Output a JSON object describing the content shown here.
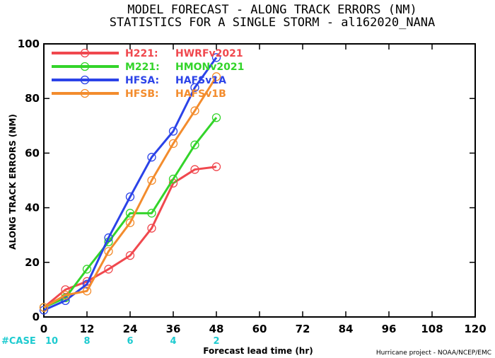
{
  "colors": {
    "H221": "#f0484e",
    "M221": "#33d42a",
    "HFSA": "#2b43e8",
    "HFSB": "#f38c2d",
    "case": "#1ecbd0"
  },
  "chart_data": {
    "type": "line",
    "title": "MODEL FORECAST - ALONG TRACK ERRORS (NM)",
    "subtitle": "STATISTICS FOR A SINGLE STORM - al162020_NANA",
    "xlabel": "Forecast lead time (hr)",
    "ylabel": "ALONG TRACK ERRORS (NM)",
    "xlim": [
      0,
      120
    ],
    "ylim": [
      0,
      100
    ],
    "x_ticks": [
      "0",
      "12",
      "24",
      "36",
      "48",
      "60",
      "72",
      "84",
      "96",
      "108",
      "120"
    ],
    "y_ticks": [
      "0",
      "20",
      "40",
      "60",
      "80",
      "100"
    ],
    "legend_position": "top-left",
    "series": [
      {
        "name": "H221:",
        "label": "HWRFv2021",
        "color_key": "H221",
        "x": [
          0,
          6,
          12,
          18,
          24,
          30,
          36,
          42,
          48
        ],
        "y": [
          3.5,
          10,
          13,
          17.5,
          22.5,
          32.5,
          49,
          54,
          55
        ]
      },
      {
        "name": "M221:",
        "label": "HMONv2021",
        "color_key": "M221",
        "x": [
          0,
          6,
          12,
          18,
          24,
          30,
          36,
          42,
          48
        ],
        "y": [
          3.5,
          7,
          17.5,
          27.5,
          38,
          38,
          50.5,
          63,
          73
        ]
      },
      {
        "name": "HFSA:",
        "label": "HAFSv1A",
        "color_key": "HFSA",
        "x": [
          0,
          6,
          12,
          18,
          24,
          30,
          36,
          42,
          48
        ],
        "y": [
          2.5,
          6,
          12,
          29,
          44,
          58.5,
          68,
          84,
          95
        ]
      },
      {
        "name": "HFSB:",
        "label": "HAFSv1B",
        "color_key": "HFSB",
        "x": [
          0,
          6,
          12,
          18,
          24,
          30,
          36,
          42,
          48
        ],
        "y": [
          3.5,
          8,
          9.5,
          24,
          34.5,
          50,
          63.5,
          75.5,
          88
        ]
      }
    ],
    "case_label": "#CASE",
    "cases": [
      {
        "x": 0,
        "n": "10"
      },
      {
        "x": 12,
        "n": "8"
      },
      {
        "x": 24,
        "n": "6"
      },
      {
        "x": 36,
        "n": "4"
      },
      {
        "x": 48,
        "n": "2"
      }
    ],
    "credit": "Hurricane project - NOAA/NCEP/EMC"
  }
}
